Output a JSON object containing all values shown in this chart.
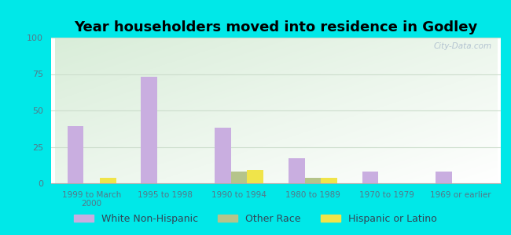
{
  "title": "Year householders moved into residence in Godley",
  "categories": [
    "1999 to March\n2000",
    "1995 to 1998",
    "1990 to 1994",
    "1980 to 1989",
    "1970 to 1979",
    "1969 or earlier"
  ],
  "white_non_hispanic": [
    39,
    73,
    38,
    17,
    8,
    8
  ],
  "other_race": [
    0,
    0,
    8,
    4,
    0,
    0
  ],
  "hispanic_or_latino": [
    4,
    0,
    9,
    4,
    0,
    0
  ],
  "white_color": "#c9aee0",
  "other_color": "#b5c48a",
  "hispanic_color": "#f0e44a",
  "background_color": "#00e8e8",
  "plot_bg_color1": "#d8ecd0",
  "plot_bg_color2": "#f0f8f0",
  "plot_bg_color3": "#ffffff",
  "ylim": [
    0,
    100
  ],
  "yticks": [
    0,
    25,
    50,
    75,
    100
  ],
  "bar_width": 0.22,
  "title_fontsize": 13,
  "legend_fontsize": 9,
  "tick_color": "#557788",
  "grid_color": "#ccddcc",
  "watermark": "City-Data.com"
}
